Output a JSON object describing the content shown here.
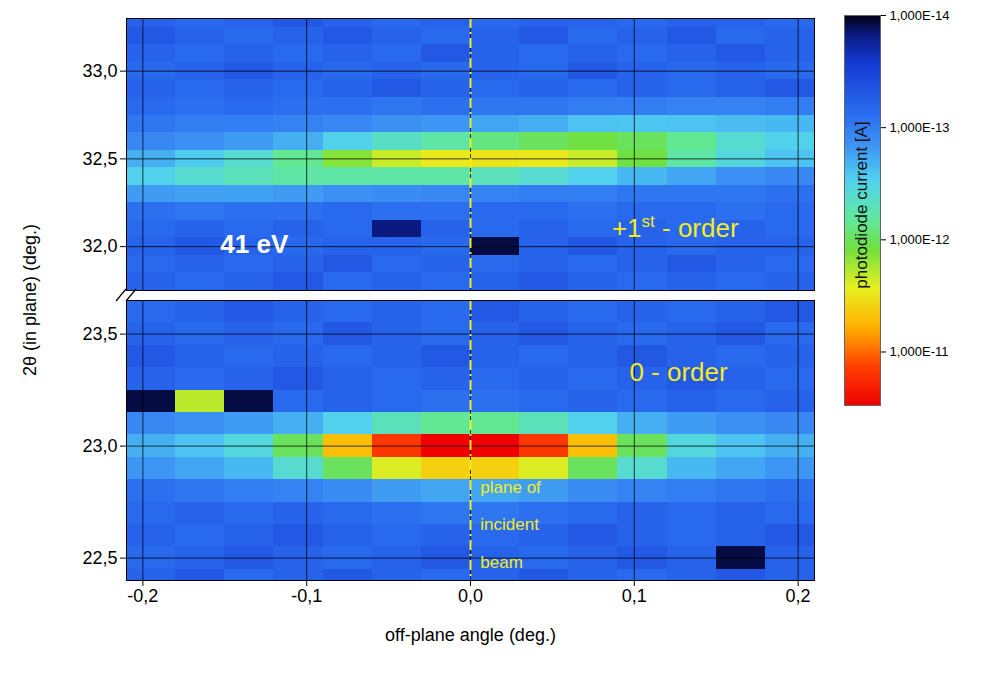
{
  "chart_data": {
    "type": "heatmap",
    "x_label": "off-plane angle (deg.)",
    "y_label": "2θ (in plane) (deg.)",
    "grid": true,
    "xlim": [
      -0.21,
      0.21
    ],
    "xticks": [
      {
        "value": -0.2,
        "label": "-0,2"
      },
      {
        "value": -0.1,
        "label": "-0,1"
      },
      {
        "value": 0,
        "label": "0,0"
      },
      {
        "value": 0.1,
        "label": "0,1"
      },
      {
        "value": 0.2,
        "label": "0,2"
      }
    ],
    "beam_plane_x": 0,
    "x": [
      -0.195,
      -0.165,
      -0.135,
      -0.105,
      -0.075,
      -0.045,
      -0.015,
      0.015,
      0.045,
      0.075,
      0.105,
      0.135,
      0.165,
      0.195
    ],
    "panels": [
      {
        "ylim": [
          31.75,
          33.3
        ],
        "yticks": [
          {
            "value": 32,
            "label": "32,0"
          },
          {
            "value": 32.5,
            "label": "32,5"
          },
          {
            "value": 33,
            "label": "33,0"
          }
        ],
        "y": [
          31.8,
          31.9,
          32.0,
          32.1,
          32.2,
          32.3,
          32.4,
          32.5,
          32.6,
          32.7,
          32.8,
          32.9,
          33.0,
          33.1,
          33.2,
          33.3
        ],
        "values": [
          [
            6e-14,
            7e-14,
            6e-14,
            5e-14,
            7e-14,
            6e-14,
            7e-14,
            6e-14,
            5e-14,
            6e-14,
            7e-14,
            6e-14,
            7e-14,
            6e-14
          ],
          [
            7e-14,
            6e-14,
            7e-14,
            6e-14,
            5e-14,
            7e-14,
            6e-14,
            7e-14,
            6e-14,
            7e-14,
            6e-14,
            5e-14,
            6e-14,
            7e-14
          ],
          [
            6e-14,
            5e-14,
            6e-14,
            7e-14,
            6e-14,
            6e-14,
            7e-14,
            1.2e-14,
            6e-14,
            5e-14,
            6e-14,
            7e-14,
            6e-14,
            6e-14
          ],
          [
            7e-14,
            6e-14,
            7e-14,
            6e-14,
            7e-14,
            1.5e-14,
            6e-14,
            7e-14,
            6e-14,
            7e-14,
            6e-14,
            7e-14,
            6e-14,
            7e-14
          ],
          [
            8e-14,
            9e-14,
            8e-14,
            8e-14,
            7e-14,
            8e-14,
            8e-14,
            7e-14,
            7e-14,
            8e-14,
            7e-14,
            7e-14,
            8e-14,
            7e-14
          ],
          [
            1.6e-13,
            1.7e-13,
            1.7e-13,
            1.6e-13,
            1.4e-13,
            1.3e-13,
            1.2e-13,
            1.1e-13,
            1e-13,
            1e-13,
            9e-14,
            9e-14,
            9e-14,
            8e-14
          ],
          [
            3e-13,
            4e-13,
            5e-13,
            6e-13,
            6e-13,
            6e-13,
            6e-13,
            5e-13,
            4e-13,
            3e-13,
            2.2e-13,
            1.8e-13,
            1.4e-13,
            1.2e-13
          ],
          [
            2e-13,
            2.8e-13,
            4e-13,
            7e-13,
            1.4e-12,
            2.2e-12,
            3e-12,
            3.2e-12,
            3e-12,
            2.2e-12,
            1.2e-12,
            6e-13,
            3.5e-13,
            2.5e-13
          ],
          [
            1.2e-13,
            1.4e-13,
            1.6e-13,
            2e-13,
            3e-13,
            4.5e-13,
            6e-13,
            8e-13,
            1e-12,
            1.2e-12,
            1e-12,
            7e-13,
            4e-13,
            3e-13
          ],
          [
            9e-14,
            1e-13,
            1e-13,
            1.1e-13,
            1.2e-13,
            1.4e-13,
            1.5e-13,
            1.8e-13,
            2e-13,
            2.5e-13,
            2.6e-13,
            2.5e-13,
            2.3e-13,
            2.2e-13
          ],
          [
            7e-14,
            8e-14,
            7e-14,
            8e-14,
            8e-14,
            9e-14,
            8e-14,
            9e-14,
            9e-14,
            1e-13,
            1e-13,
            1.1e-13,
            1.1e-13,
            1e-13
          ],
          [
            6e-14,
            7e-14,
            6e-14,
            7e-14,
            6e-14,
            5e-14,
            6e-14,
            7e-14,
            6e-14,
            7e-14,
            6e-14,
            7e-14,
            6e-14,
            5e-14
          ],
          [
            7e-14,
            6e-14,
            5e-14,
            6e-14,
            7e-14,
            6e-14,
            7e-14,
            6e-14,
            7e-14,
            5e-14,
            6e-14,
            7e-14,
            6e-14,
            7e-14
          ],
          [
            6e-14,
            7e-14,
            6e-14,
            7e-14,
            6e-14,
            7e-14,
            5e-14,
            6e-14,
            7e-14,
            6e-14,
            7e-14,
            6e-14,
            5e-14,
            6e-14
          ],
          [
            5e-14,
            6e-14,
            7e-14,
            6e-14,
            5e-14,
            6e-14,
            7e-14,
            6e-14,
            5e-14,
            7e-14,
            6e-14,
            5e-14,
            7e-14,
            6e-14
          ],
          [
            6e-14,
            7e-14,
            6e-14,
            5e-14,
            6e-14,
            7e-14,
            6e-14,
            7e-14,
            6e-14,
            6e-14,
            7e-14,
            6e-14,
            6e-14,
            7e-14
          ]
        ],
        "annotations": [
          {
            "text": "41 eV",
            "x": -0.132,
            "y": 32.01,
            "color": "#ffffff"
          },
          {
            "text": "+1st - order",
            "x": 0.125,
            "y": 32.1,
            "color": "#f2ec1e"
          }
        ]
      },
      {
        "ylim": [
          22.4,
          23.65
        ],
        "yticks": [
          {
            "value": 22.5,
            "label": "22,5"
          },
          {
            "value": 23,
            "label": "23,0"
          },
          {
            "value": 23.5,
            "label": "23,5"
          }
        ],
        "y": [
          22.4,
          22.5,
          22.6,
          22.7,
          22.8,
          22.9,
          23.0,
          23.1,
          23.2,
          23.3,
          23.4,
          23.5,
          23.6
        ],
        "values": [
          [
            6e-14,
            5e-14,
            7e-14,
            6e-14,
            5e-14,
            6e-14,
            7e-14,
            6e-14,
            5e-14,
            6e-14,
            7e-14,
            6e-14,
            5e-14,
            6e-14
          ],
          [
            7e-14,
            6e-14,
            5e-14,
            6e-14,
            7e-14,
            6e-14,
            5e-14,
            6e-14,
            7e-14,
            6e-14,
            5e-14,
            6e-14,
            1.2e-14,
            6e-14
          ],
          [
            6e-14,
            7e-14,
            6e-14,
            5e-14,
            6e-14,
            7e-14,
            6e-14,
            7e-14,
            6e-14,
            5e-14,
            6e-14,
            7e-14,
            6e-14,
            5e-14
          ],
          [
            7e-14,
            6e-14,
            7e-14,
            6e-14,
            7e-14,
            8e-14,
            9e-14,
            9e-14,
            8e-14,
            7e-14,
            6e-14,
            7e-14,
            6e-14,
            7e-14
          ],
          [
            8e-14,
            9e-14,
            1e-13,
            1.1e-13,
            1.3e-13,
            1.6e-13,
            1.8e-13,
            1.8e-13,
            1.6e-13,
            1.3e-13,
            1.1e-13,
            1e-13,
            9e-14,
            8e-14
          ],
          [
            1.5e-13,
            1.8e-13,
            2.2e-13,
            4e-13,
            1e-12,
            2.5e-12,
            4e-12,
            4e-12,
            2.5e-12,
            1e-12,
            4e-13,
            2.2e-13,
            1.8e-13,
            1.5e-13
          ],
          [
            2e-13,
            2.5e-13,
            3.5e-13,
            1e-12,
            5e-12,
            1.5e-11,
            3e-11,
            3e-11,
            1.5e-11,
            5e-12,
            1e-12,
            3.5e-13,
            2.5e-13,
            2e-13
          ],
          [
            1.2e-13,
            1.4e-13,
            1.6e-13,
            2e-13,
            3e-13,
            5e-13,
            7e-13,
            7e-13,
            5e-13,
            3e-13,
            2e-13,
            1.6e-13,
            1.4e-13,
            1.2e-13
          ],
          [
            1.2e-14,
            2e-12,
            1.2e-14,
            7e-14,
            6e-14,
            7e-14,
            8e-14,
            8e-14,
            7e-14,
            6e-14,
            7e-14,
            6e-14,
            7e-14,
            6e-14
          ],
          [
            6e-14,
            7e-14,
            6e-14,
            5e-14,
            6e-14,
            7e-14,
            6e-14,
            7e-14,
            6e-14,
            7e-14,
            6e-14,
            5e-14,
            6e-14,
            7e-14
          ],
          [
            5e-14,
            6e-14,
            7e-14,
            6e-14,
            7e-14,
            6e-14,
            5e-14,
            6e-14,
            7e-14,
            6e-14,
            5e-14,
            6e-14,
            7e-14,
            6e-14
          ],
          [
            6e-14,
            7e-14,
            6e-14,
            7e-14,
            5e-14,
            6e-14,
            7e-14,
            6e-14,
            5e-14,
            6e-14,
            7e-14,
            6e-14,
            5e-14,
            7e-14
          ],
          [
            7e-14,
            6e-14,
            5e-14,
            6e-14,
            7e-14,
            6e-14,
            7e-14,
            5e-14,
            6e-14,
            7e-14,
            6e-14,
            7e-14,
            6e-14,
            5e-14
          ]
        ],
        "annotations": [
          {
            "text": "0 - order",
            "x": 0.127,
            "y": 23.33,
            "color": "#f2ec1e"
          },
          {
            "text": "plane of\nincident\nbeam",
            "x": 0.006,
            "y": 22.91,
            "color": "#f2ec1e"
          }
        ]
      }
    ],
    "colorbar": {
      "label": "photodiode current [A]",
      "log": true,
      "range": [
        1e-14,
        3e-11
      ],
      "ticks": [
        {
          "value": 1e-14,
          "label": "1,000E-14"
        },
        {
          "value": 1e-13,
          "label": "1,000E-13"
        },
        {
          "value": 1e-12,
          "label": "1,000E-12"
        },
        {
          "value": 1e-11,
          "label": "1,000E-11"
        }
      ]
    }
  }
}
